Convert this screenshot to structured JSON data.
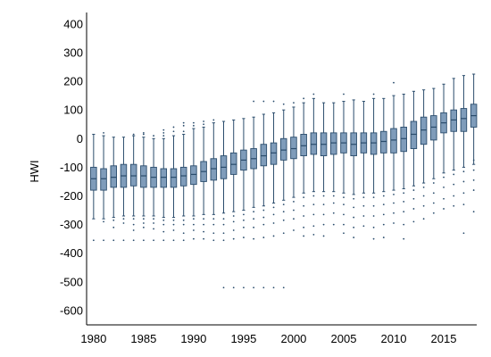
{
  "chart_data": {
    "type": "box",
    "ylabel": "HWI",
    "xlabel": "",
    "ylim": [
      -650,
      440
    ],
    "xlim": [
      1979.3,
      2018.3
    ],
    "yticks": [
      400,
      300,
      200,
      100,
      0,
      -100,
      -200,
      -300,
      -400,
      -500,
      -600
    ],
    "xticks": [
      1980,
      1985,
      1990,
      1995,
      2000,
      2005,
      2010,
      2015
    ],
    "grid": false,
    "legend": "none",
    "colors": {
      "box_fill": "#7f9cba",
      "box_edge": "#2a4c6c",
      "whisker": "#2a4c6c",
      "outlier": "#2a4c6c",
      "axis": "#000000"
    },
    "boxes": [
      {
        "year": 1980,
        "whislo": -280,
        "q1": -180,
        "med": -140,
        "q3": -100,
        "whishi": 15
      },
      {
        "year": 1981,
        "whislo": -280,
        "q1": -180,
        "med": -140,
        "q3": -105,
        "whishi": 10
      },
      {
        "year": 1982,
        "whislo": -275,
        "q1": -170,
        "med": -135,
        "q3": -95,
        "whishi": 5
      },
      {
        "year": 1983,
        "whislo": -270,
        "q1": -170,
        "med": -130,
        "q3": -90,
        "whishi": 5
      },
      {
        "year": 1984,
        "whislo": -270,
        "q1": -165,
        "med": -130,
        "q3": -90,
        "whishi": 10
      },
      {
        "year": 1985,
        "whislo": -270,
        "q1": -170,
        "med": -130,
        "q3": -95,
        "whishi": 5
      },
      {
        "year": 1986,
        "whislo": -270,
        "q1": -170,
        "med": -135,
        "q3": -100,
        "whishi": 0
      },
      {
        "year": 1987,
        "whislo": -275,
        "q1": -170,
        "med": -135,
        "q3": -105,
        "whishi": 0
      },
      {
        "year": 1988,
        "whislo": -275,
        "q1": -170,
        "med": -135,
        "q3": -105,
        "whishi": 10
      },
      {
        "year": 1989,
        "whislo": -270,
        "q1": -165,
        "med": -130,
        "q3": -100,
        "whishi": 15
      },
      {
        "year": 1990,
        "whislo": -270,
        "q1": -160,
        "med": -125,
        "q3": -95,
        "whishi": 35
      },
      {
        "year": 1991,
        "whislo": -265,
        "q1": -150,
        "med": -115,
        "q3": -80,
        "whishi": 40
      },
      {
        "year": 1992,
        "whislo": -265,
        "q1": -145,
        "med": -105,
        "q3": -70,
        "whishi": 55
      },
      {
        "year": 1993,
        "whislo": -260,
        "q1": -140,
        "med": -100,
        "q3": -60,
        "whishi": 60
      },
      {
        "year": 1994,
        "whislo": -255,
        "q1": -125,
        "med": -90,
        "q3": -50,
        "whishi": 65
      },
      {
        "year": 1995,
        "whislo": -250,
        "q1": -110,
        "med": -75,
        "q3": -40,
        "whishi": 70
      },
      {
        "year": 1996,
        "whislo": -240,
        "q1": -105,
        "med": -70,
        "q3": -35,
        "whishi": 75
      },
      {
        "year": 1997,
        "whislo": -235,
        "q1": -95,
        "med": -60,
        "q3": -20,
        "whishi": 85
      },
      {
        "year": 1998,
        "whislo": -225,
        "q1": -90,
        "med": -50,
        "q3": -15,
        "whishi": 90
      },
      {
        "year": 1999,
        "whislo": -215,
        "q1": -75,
        "med": -40,
        "q3": 0,
        "whishi": 100
      },
      {
        "year": 2000,
        "whislo": -205,
        "q1": -70,
        "med": -35,
        "q3": 5,
        "whishi": 110
      },
      {
        "year": 2001,
        "whislo": -190,
        "q1": -60,
        "med": -25,
        "q3": 15,
        "whishi": 125
      },
      {
        "year": 2002,
        "whislo": -185,
        "q1": -55,
        "med": -20,
        "q3": 20,
        "whishi": 140
      },
      {
        "year": 2003,
        "whislo": -185,
        "q1": -60,
        "med": -20,
        "q3": 20,
        "whishi": 125
      },
      {
        "year": 2004,
        "whislo": -185,
        "q1": -55,
        "med": -15,
        "q3": 20,
        "whishi": 125
      },
      {
        "year": 2005,
        "whislo": -190,
        "q1": -50,
        "med": -15,
        "q3": 20,
        "whishi": 130
      },
      {
        "year": 2006,
        "whislo": -195,
        "q1": -60,
        "med": -20,
        "q3": 20,
        "whishi": 135
      },
      {
        "year": 2007,
        "whislo": -190,
        "q1": -50,
        "med": -15,
        "q3": 20,
        "whishi": 130
      },
      {
        "year": 2008,
        "whislo": -190,
        "q1": -55,
        "med": -15,
        "q3": 20,
        "whishi": 140
      },
      {
        "year": 2009,
        "whislo": -185,
        "q1": -50,
        "med": -10,
        "q3": 25,
        "whishi": 140
      },
      {
        "year": 2010,
        "whislo": -180,
        "q1": -50,
        "med": -5,
        "q3": 35,
        "whishi": 150
      },
      {
        "year": 2011,
        "whislo": -175,
        "q1": -45,
        "med": 0,
        "q3": 40,
        "whishi": 155
      },
      {
        "year": 2012,
        "whislo": -165,
        "q1": -35,
        "med": 15,
        "q3": 60,
        "whishi": 165
      },
      {
        "year": 2013,
        "whislo": -155,
        "q1": -20,
        "med": 30,
        "q3": 75,
        "whishi": 170
      },
      {
        "year": 2014,
        "whislo": -140,
        "q1": -5,
        "med": 40,
        "q3": 80,
        "whishi": 175
      },
      {
        "year": 2015,
        "whislo": -120,
        "q1": 20,
        "med": 55,
        "q3": 90,
        "whishi": 190
      },
      {
        "year": 2016,
        "whislo": -110,
        "q1": 25,
        "med": 65,
        "q3": 100,
        "whishi": 210
      },
      {
        "year": 2017,
        "whislo": -100,
        "q1": 25,
        "med": 70,
        "q3": 105,
        "whishi": 220
      },
      {
        "year": 2018,
        "whislo": -90,
        "q1": 40,
        "med": 80,
        "q3": 120,
        "whishi": 225
      }
    ],
    "outliers": [
      {
        "year": 1980,
        "values": [
          -355
        ]
      },
      {
        "year": 1981,
        "values": [
          -290,
          -355,
          20
        ]
      },
      {
        "year": 1982,
        "values": [
          -285,
          -310,
          -355
        ]
      },
      {
        "year": 1983,
        "values": [
          -280,
          -295,
          -355
        ]
      },
      {
        "year": 1984,
        "values": [
          -280,
          -300,
          -320,
          -355,
          15
        ]
      },
      {
        "year": 1985,
        "values": [
          -280,
          -295,
          -310,
          -355,
          15,
          20
        ]
      },
      {
        "year": 1986,
        "values": [
          -280,
          -295,
          -315,
          -355,
          10
        ]
      },
      {
        "year": 1987,
        "values": [
          -285,
          -300,
          -325,
          -355,
          10,
          20,
          30
        ]
      },
      {
        "year": 1988,
        "values": [
          -285,
          -300,
          -320,
          -355,
          25,
          40
        ]
      },
      {
        "year": 1989,
        "values": [
          -285,
          -300,
          -330,
          -355,
          25,
          45,
          55
        ]
      },
      {
        "year": 1990,
        "values": [
          -280,
          -300,
          -320,
          -350,
          45,
          55
        ]
      },
      {
        "year": 1991,
        "values": [
          -280,
          -300,
          -325,
          -350,
          50,
          60
        ]
      },
      {
        "year": 1992,
        "values": [
          -280,
          -300,
          -330,
          -355,
          65
        ]
      },
      {
        "year": 1993,
        "values": [
          -280,
          -300,
          -330,
          -355,
          -520
        ]
      },
      {
        "year": 1994,
        "values": [
          -270,
          -290,
          -320,
          -350,
          -520
        ]
      },
      {
        "year": 1995,
        "values": [
          -265,
          -285,
          -310,
          -345,
          -520
        ]
      },
      {
        "year": 1996,
        "values": [
          -255,
          -280,
          -310,
          -350,
          -520,
          130
        ]
      },
      {
        "year": 1997,
        "values": [
          -250,
          -275,
          -300,
          -345,
          -520,
          130
        ]
      },
      {
        "year": 1998,
        "values": [
          -240,
          -265,
          -295,
          -340,
          -520,
          130
        ]
      },
      {
        "year": 1999,
        "values": [
          -230,
          -255,
          -285,
          -330,
          -520,
          120
        ]
      },
      {
        "year": 2000,
        "values": [
          -220,
          -250,
          -280,
          -320,
          125
        ]
      },
      {
        "year": 2001,
        "values": [
          -205,
          -235,
          -270,
          -310,
          -340,
          140
        ]
      },
      {
        "year": 2002,
        "values": [
          -200,
          -230,
          -265,
          -305,
          -335,
          155
        ]
      },
      {
        "year": 2003,
        "values": [
          -200,
          -230,
          -265,
          -300,
          -340
        ]
      },
      {
        "year": 2004,
        "values": [
          -200,
          -225,
          -260,
          -300
        ]
      },
      {
        "year": 2005,
        "values": [
          -205,
          -230,
          -265,
          -300,
          -330,
          155
        ]
      },
      {
        "year": 2006,
        "values": [
          -210,
          -240,
          -275,
          -310,
          -345
        ]
      },
      {
        "year": 2007,
        "values": [
          -205,
          -235,
          -270,
          -305
        ]
      },
      {
        "year": 2008,
        "values": [
          -205,
          -235,
          -270,
          -310,
          -350,
          155
        ]
      },
      {
        "year": 2009,
        "values": [
          -200,
          -230,
          -265,
          -300,
          -345
        ]
      },
      {
        "year": 2010,
        "values": [
          -195,
          -225,
          -260,
          -295,
          195
        ]
      },
      {
        "year": 2011,
        "values": [
          -190,
          -220,
          -255,
          -300,
          -350
        ]
      },
      {
        "year": 2012,
        "values": [
          -180,
          -210,
          -245,
          -290
        ]
      },
      {
        "year": 2013,
        "values": [
          -170,
          -200,
          -235,
          -280
        ]
      },
      {
        "year": 2014,
        "values": [
          -155,
          -190,
          -225,
          -260
        ]
      },
      {
        "year": 2015,
        "values": [
          -135,
          -170,
          -210,
          -245
        ]
      },
      {
        "year": 2016,
        "values": [
          -125,
          -160,
          -200,
          -235
        ]
      },
      {
        "year": 2017,
        "values": [
          -115,
          -150,
          -190,
          -230,
          -330
        ]
      },
      {
        "year": 2018,
        "values": [
          -75,
          -110,
          -145,
          -180,
          -255
        ]
      }
    ]
  }
}
